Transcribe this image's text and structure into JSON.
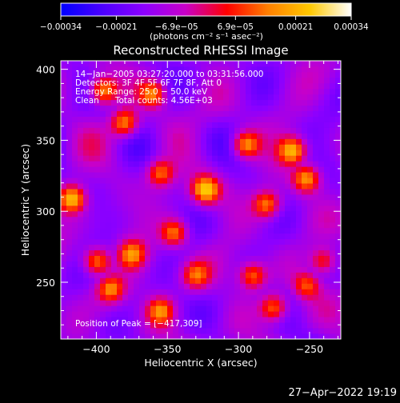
{
  "chart_data": {
    "type": "heatmap",
    "title": "Reconstructed RHESSI Image",
    "xlabel": "Heliocentric X (arcsec)",
    "ylabel": "Heliocentric Y (arcsec)",
    "xlim": [
      -425,
      -228
    ],
    "ylim": [
      210,
      406
    ],
    "xticks": [
      {
        "value": -400,
        "label": "−400"
      },
      {
        "value": -350,
        "label": "−350"
      },
      {
        "value": -300,
        "label": "−300"
      },
      {
        "value": -250,
        "label": "−250"
      }
    ],
    "yticks": [
      {
        "value": 250,
        "label": "250"
      },
      {
        "value": 300,
        "label": "300"
      },
      {
        "value": 350,
        "label": "350"
      },
      {
        "value": 400,
        "label": "400"
      }
    ],
    "colorbar": {
      "range": [
        -0.00034,
        0.00034
      ],
      "ticks": [
        {
          "value": -0.00034,
          "label": "−0.00034"
        },
        {
          "value": -0.00021,
          "label": "−0.00021"
        },
        {
          "value": -6.9e-05,
          "label": "−6.9e−05"
        },
        {
          "value": 6.9e-05,
          "label": "6.9e−05"
        },
        {
          "value": 0.00021,
          "label": "0.00021"
        },
        {
          "value": 0.00034,
          "label": "0.00034"
        }
      ],
      "units": "(photons cm⁻² s⁻¹ asec⁻²)",
      "colors": [
        "#0000ff",
        "#4b00ff",
        "#8c00ff",
        "#c800c8",
        "#ff0000",
        "#ff8000",
        "#ffc800",
        "#ffffff"
      ]
    },
    "annotations": [
      "14−Jan−2005 03:27:20.000 to 03:31:56.000",
      "Detectors: 3F 4F 5F 6F 7F 8F, Att 0",
      "Energy Range: 25.0 − 50.0 keV",
      "Clean      Total counts: 4.56E+03"
    ],
    "peak_label": "Position of Peak = [−417,309]",
    "peak": {
      "x": -417,
      "y": 309
    },
    "grid": false,
    "bright_features": [
      {
        "x": -417,
        "y": 309,
        "value": 1.0
      },
      {
        "x": -395,
        "y": 385,
        "value": 0.85
      },
      {
        "x": -380,
        "y": 362,
        "value": 0.8
      },
      {
        "x": -360,
        "y": 383,
        "value": 0.7
      },
      {
        "x": -355,
        "y": 327,
        "value": 0.7
      },
      {
        "x": -323,
        "y": 315,
        "value": 0.95
      },
      {
        "x": -295,
        "y": 347,
        "value": 0.8
      },
      {
        "x": -280,
        "y": 305,
        "value": 0.75
      },
      {
        "x": -262,
        "y": 343,
        "value": 0.9
      },
      {
        "x": -252,
        "y": 323,
        "value": 0.8
      },
      {
        "x": -345,
        "y": 285,
        "value": 0.75
      },
      {
        "x": -375,
        "y": 270,
        "value": 0.7
      },
      {
        "x": -400,
        "y": 265,
        "value": 0.8
      },
      {
        "x": -390,
        "y": 245,
        "value": 0.7
      },
      {
        "x": -355,
        "y": 230,
        "value": 0.7
      },
      {
        "x": -330,
        "y": 255,
        "value": 0.6
      },
      {
        "x": -290,
        "y": 255,
        "value": 0.7
      },
      {
        "x": -275,
        "y": 232,
        "value": 0.75
      },
      {
        "x": -252,
        "y": 248,
        "value": 0.6
      },
      {
        "x": -240,
        "y": 265,
        "value": 0.6
      }
    ]
  },
  "footer": {
    "timestamp": "27−Apr−2022 19:19"
  }
}
